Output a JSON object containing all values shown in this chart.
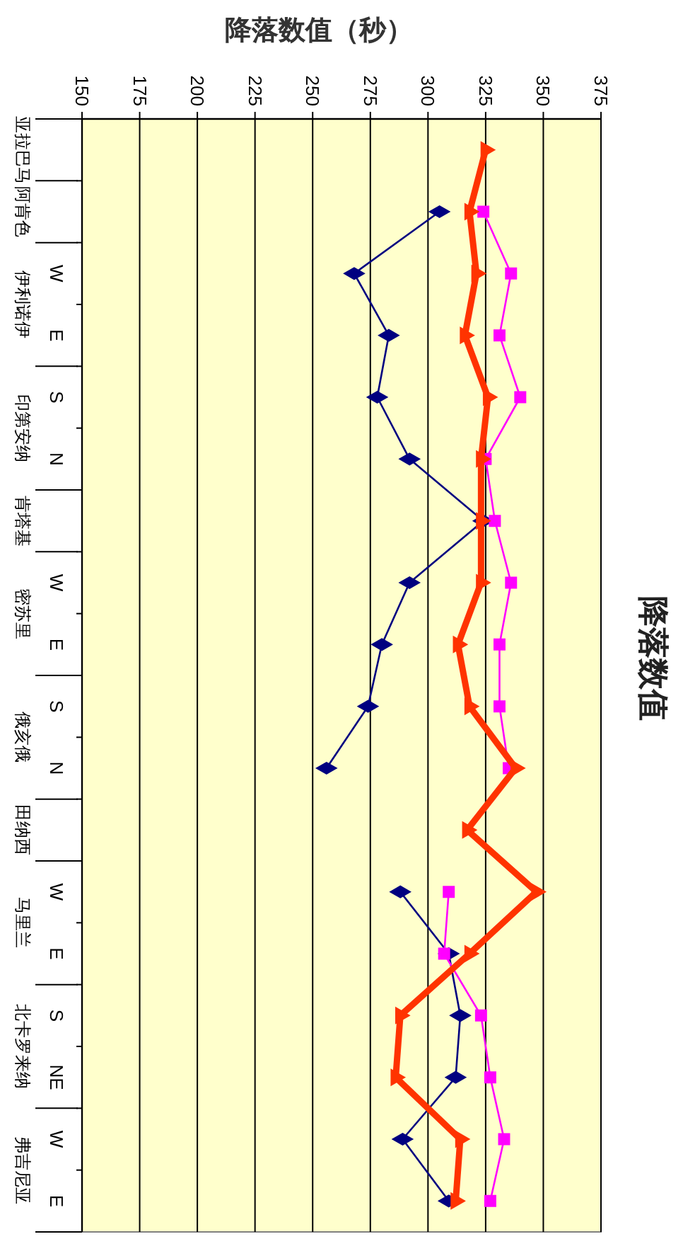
{
  "chart_data": {
    "type": "line",
    "orientation": "horizontal",
    "title": "降落数值",
    "xlabel": "降落数值（秒）",
    "categories": [
      null,
      null,
      "W",
      "E",
      "S",
      "N",
      null,
      "W",
      "E",
      "S",
      "N",
      null,
      "W",
      "E",
      "S",
      "NE",
      "W",
      "E"
    ],
    "annotations": [
      "亚拉巴马",
      "阿肯色",
      "伊利诺伊",
      "印第安纳",
      "肯塔基",
      "密苏里",
      "俄亥俄",
      "田纳西",
      "马里兰",
      "北卡罗来纳",
      "弗吉尼亚"
    ],
    "series": [
      {
        "color": "#000080",
        "marker": "diamond",
        "values": [
          null,
          305,
          268,
          283,
          278,
          292,
          324,
          292,
          280,
          274,
          256,
          null,
          288,
          309,
          314,
          312,
          289,
          309
        ]
      },
      {
        "color": "#ff00ff",
        "marker": "square",
        "values": [
          null,
          324,
          336,
          331,
          340,
          325,
          329,
          336,
          331,
          331,
          335,
          null,
          309,
          307,
          323,
          327,
          333,
          327
        ]
      },
      {
        "color": "#ff3300",
        "marker": "triangle",
        "values": [
          325,
          318,
          321,
          316,
          326,
          323,
          323,
          323,
          313,
          318,
          338,
          317,
          347,
          318,
          288,
          286,
          314,
          312
        ]
      }
    ],
    "xlim": [
      150,
      375
    ],
    "xticks": [
      150,
      175,
      200,
      225,
      250,
      275,
      300,
      325,
      350,
      375
    ],
    "grid": "x"
  }
}
